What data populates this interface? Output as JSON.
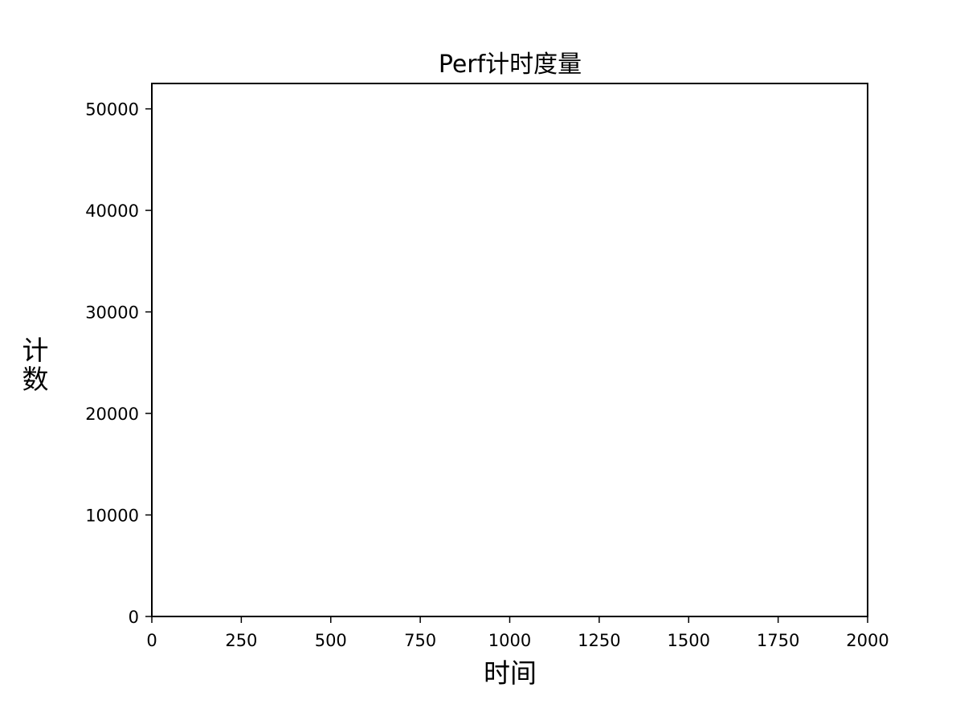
{
  "chart_data": {
    "type": "line",
    "title": "Perf计时度量",
    "xlabel": "时间",
    "ylabel": "计数",
    "xlim": [
      0,
      2000
    ],
    "ylim": [
      0,
      52500
    ],
    "x_ticks": [
      0,
      250,
      500,
      750,
      1000,
      1250,
      1500,
      1750,
      2000
    ],
    "y_ticks": [
      0,
      10000,
      20000,
      30000,
      40000,
      50000
    ],
    "grid": false,
    "series": []
  }
}
